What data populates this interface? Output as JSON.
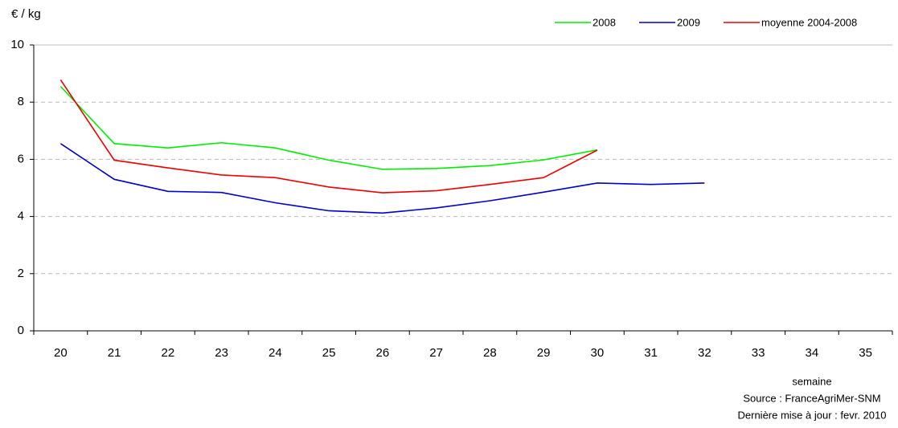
{
  "chart_data": {
    "type": "line",
    "y_label": "€ / kg",
    "x_label": "semaine",
    "source": "Source : FranceAgriMer-SNM",
    "update_note": "Dernière mise à jour : fevr. 2010",
    "categories": [
      "20",
      "21",
      "22",
      "23",
      "24",
      "25",
      "26",
      "27",
      "28",
      "29",
      "30",
      "31",
      "32",
      "33",
      "34",
      "35"
    ],
    "series": [
      {
        "name": "2008",
        "color": "#00ee00",
        "values": [
          8.55,
          6.55,
          6.4,
          6.58,
          6.4,
          5.97,
          5.65,
          5.68,
          5.78,
          5.98,
          6.33,
          null,
          null,
          null,
          null,
          null
        ]
      },
      {
        "name": "2009",
        "color": "#0000cc",
        "values": [
          6.55,
          5.3,
          4.88,
          4.84,
          4.48,
          4.2,
          4.12,
          4.3,
          4.55,
          4.85,
          5.17,
          5.12,
          5.17,
          null,
          null,
          null
        ]
      },
      {
        "name": "moyenne 2004-2008",
        "color": "#ee0000",
        "values": [
          8.78,
          5.97,
          5.7,
          5.45,
          5.36,
          5.03,
          4.83,
          4.9,
          5.12,
          5.36,
          6.32,
          null,
          null,
          null,
          null,
          null
        ]
      }
    ],
    "ylim": [
      0,
      10
    ],
    "yticks": [
      0,
      2,
      4,
      6,
      8,
      10
    ],
    "grid": true,
    "legend": "top-right"
  }
}
